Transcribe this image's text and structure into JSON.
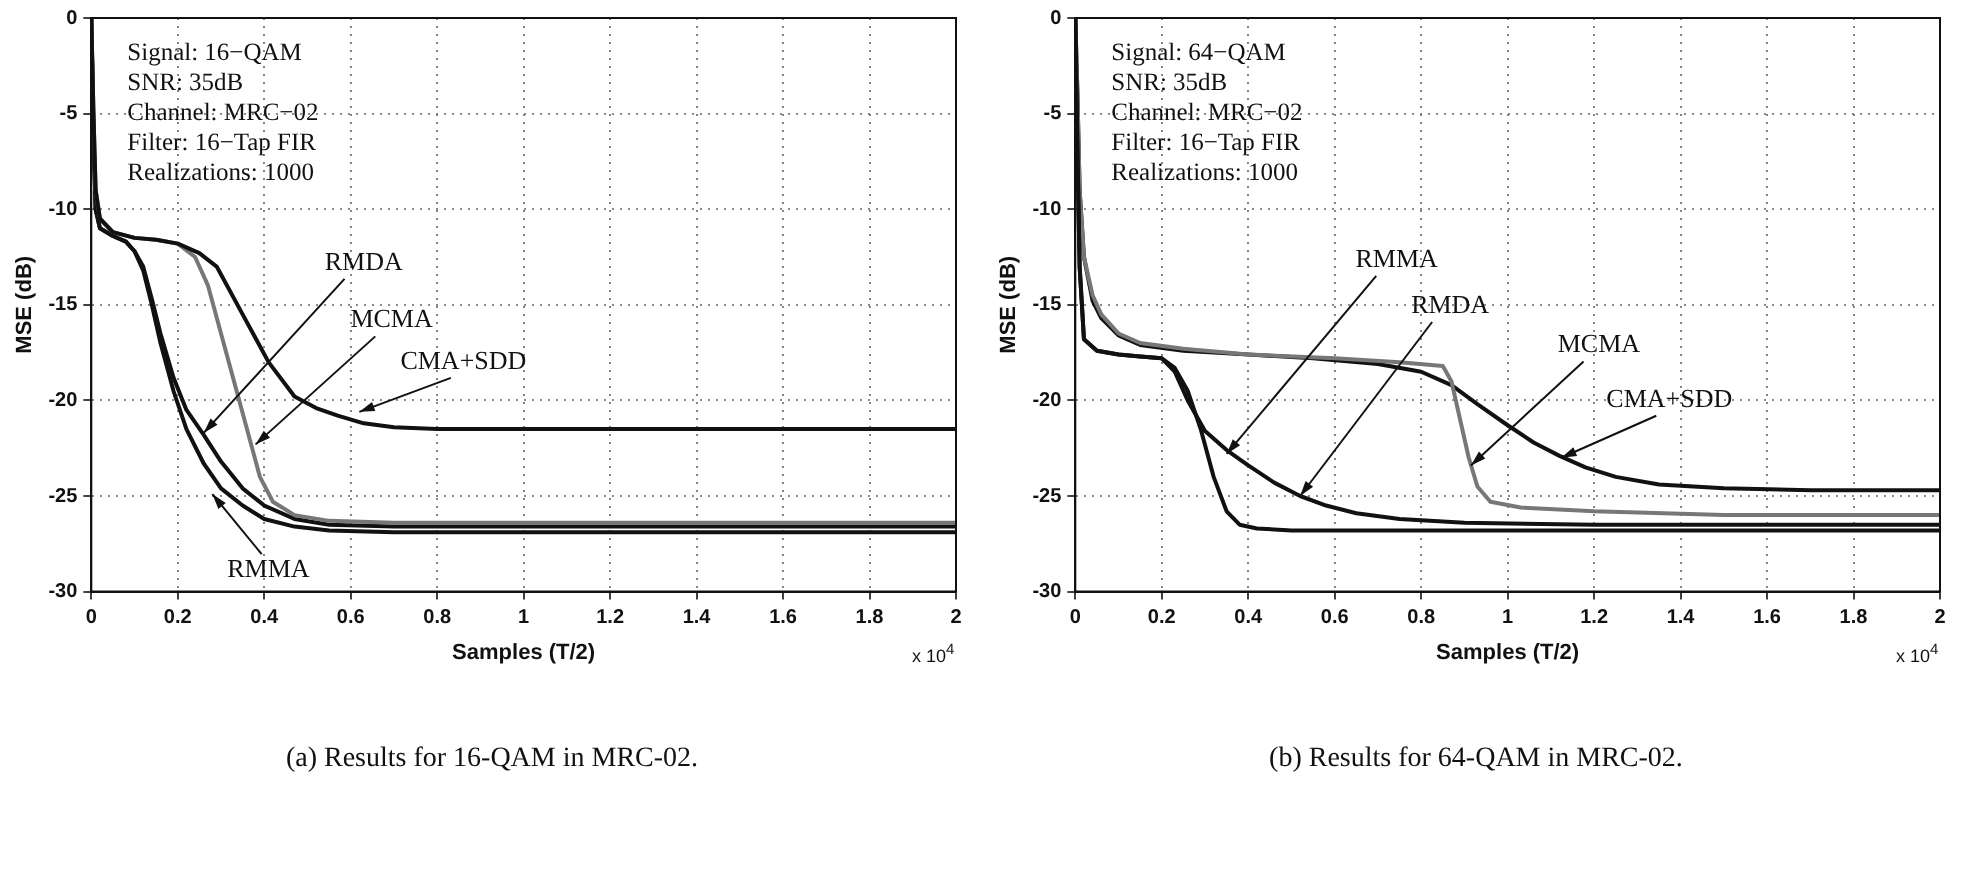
{
  "chart_data": [
    {
      "type": "line",
      "xlabel": "Samples (T/2)",
      "ylabel": "MSE (dB)",
      "xlim": [
        0,
        2
      ],
      "xticks": [
        0,
        0.2,
        0.4,
        0.6,
        0.8,
        1,
        1.2,
        1.4,
        1.6,
        1.8,
        2
      ],
      "ylim": [
        -30,
        0
      ],
      "yticks": [
        -30,
        -25,
        -20,
        -15,
        -10,
        -5,
        0
      ],
      "grid": true,
      "series": [
        {
          "color": "#111111",
          "x": [
            0,
            0.005,
            0.01,
            0.02,
            0.05,
            0.1,
            0.15,
            0.2,
            0.25,
            0.29,
            0.35,
            0.41,
            0.47,
            0.52,
            0.57,
            0.63,
            0.7,
            0.8,
            1,
            1.2,
            1.4,
            1.6,
            1.8,
            2
          ],
          "values": [
            0,
            -5,
            -9,
            -10.5,
            -11.2,
            -11.5,
            -11.6,
            -11.8,
            -12.3,
            -13,
            -15.5,
            -18,
            -19.8,
            -20.4,
            -20.8,
            -21.2,
            -21.4,
            -21.5,
            -21.5,
            -21.5,
            -21.5,
            -21.5,
            -21.5,
            -21.5
          ]
        },
        {
          "color": "#777777",
          "x": [
            0,
            0.005,
            0.01,
            0.02,
            0.05,
            0.1,
            0.15,
            0.2,
            0.24,
            0.27,
            0.3,
            0.33,
            0.36,
            0.39,
            0.42,
            0.47,
            0.55,
            0.7,
            1,
            1.4,
            2
          ],
          "values": [
            0,
            -5,
            -9,
            -10.5,
            -11.2,
            -11.5,
            -11.6,
            -11.8,
            -12.5,
            -14,
            -16.5,
            -19,
            -21.5,
            -24,
            -25.3,
            -26,
            -26.3,
            -26.4,
            -26.4,
            -26.4,
            -26.4
          ]
        },
        {
          "color": "#111111",
          "x": [
            0,
            0.005,
            0.01,
            0.02,
            0.05,
            0.08,
            0.1,
            0.12,
            0.14,
            0.16,
            0.19,
            0.22,
            0.26,
            0.3,
            0.35,
            0.4,
            0.47,
            0.55,
            0.7,
            1,
            1.5,
            2
          ],
          "values": [
            0,
            -6,
            -10,
            -11,
            -11.4,
            -11.7,
            -12.2,
            -13,
            -14.7,
            -16.5,
            -18.8,
            -20.5,
            -21.8,
            -23.2,
            -24.6,
            -25.5,
            -26.2,
            -26.5,
            -26.6,
            -26.6,
            -26.6,
            -26.6
          ]
        },
        {
          "color": "#111111",
          "x": [
            0,
            0.005,
            0.01,
            0.02,
            0.05,
            0.08,
            0.1,
            0.12,
            0.14,
            0.16,
            0.19,
            0.22,
            0.26,
            0.3,
            0.35,
            0.4,
            0.47,
            0.55,
            0.7,
            1,
            1.5,
            2
          ],
          "values": [
            0,
            -6,
            -10,
            -11,
            -11.4,
            -11.7,
            -12.2,
            -13.2,
            -15,
            -17,
            -19.5,
            -21.5,
            -23.3,
            -24.6,
            -25.5,
            -26.2,
            -26.6,
            -26.8,
            -26.9,
            -26.9,
            -26.9,
            -26.9
          ]
        }
      ],
      "annotations": [
        {
          "text": "RMDA",
          "x": 0.26,
          "y": -21.7
        },
        {
          "text": "MCMA",
          "x": 0.38,
          "y": -22.3
        },
        {
          "text": "CMA+SDD",
          "x": 0.62,
          "y": -20.6
        },
        {
          "text": "RMMA",
          "x": 0.28,
          "y": -24.9
        },
        "Signal: 16−QAM",
        "SNR: 35dB",
        "Channel: MRC−02",
        "Filter: 16−Tap FIR",
        "Realizations: 1000",
        "x 10$^{4}$",
        "(a) Results for 16-QAM in MRC-02."
      ]
    },
    {
      "type": "line",
      "xlabel": "Samples (T/2)",
      "ylabel": "MSE (dB)",
      "xlim": [
        0,
        2
      ],
      "xticks": [
        0,
        0.2,
        0.4,
        0.6,
        0.8,
        1,
        1.2,
        1.4,
        1.6,
        1.8,
        2
      ],
      "ylim": [
        -30,
        0
      ],
      "yticks": [
        -30,
        -25,
        -20,
        -15,
        -10,
        -5,
        0
      ],
      "grid": true,
      "series": [
        {
          "color": "#111111",
          "x": [
            0,
            0.005,
            0.01,
            0.02,
            0.05,
            0.1,
            0.15,
            0.2,
            0.23,
            0.26,
            0.29,
            0.32,
            0.35,
            0.38,
            0.42,
            0.5,
            0.7,
            1,
            1.5,
            2
          ],
          "values": [
            0,
            -7,
            -13,
            -16.8,
            -17.4,
            -17.6,
            -17.7,
            -17.8,
            -18.3,
            -19.5,
            -21.5,
            -24,
            -25.8,
            -26.5,
            -26.7,
            -26.8,
            -26.8,
            -26.8,
            -26.8,
            -26.8
          ]
        },
        {
          "color": "#111111",
          "x": [
            0,
            0.005,
            0.01,
            0.02,
            0.05,
            0.1,
            0.15,
            0.2,
            0.23,
            0.26,
            0.3,
            0.35,
            0.4,
            0.46,
            0.52,
            0.58,
            0.65,
            0.75,
            0.9,
            1.2,
            1.6,
            2
          ],
          "values": [
            0,
            -7,
            -13,
            -16.8,
            -17.4,
            -17.6,
            -17.7,
            -17.8,
            -18.5,
            -20,
            -21.6,
            -22.6,
            -23.4,
            -24.3,
            -25,
            -25.5,
            -25.9,
            -26.2,
            -26.4,
            -26.5,
            -26.5,
            -26.5
          ]
        },
        {
          "color": "#777777",
          "x": [
            0,
            0.005,
            0.01,
            0.02,
            0.04,
            0.06,
            0.1,
            0.15,
            0.25,
            0.4,
            0.6,
            0.75,
            0.85,
            0.87,
            0.89,
            0.91,
            0.93,
            0.96,
            1.03,
            1.2,
            1.5,
            2
          ],
          "values": [
            0,
            -4,
            -9,
            -12.5,
            -14.5,
            -15.5,
            -16.5,
            -17,
            -17.3,
            -17.6,
            -17.8,
            -18,
            -18.2,
            -19,
            -21,
            -23,
            -24.5,
            -25.3,
            -25.6,
            -25.8,
            -26,
            -26
          ]
        },
        {
          "color": "#111111",
          "x": [
            0,
            0.005,
            0.01,
            0.02,
            0.04,
            0.06,
            0.1,
            0.15,
            0.25,
            0.4,
            0.55,
            0.7,
            0.8,
            0.87,
            0.93,
            1,
            1.06,
            1.12,
            1.18,
            1.25,
            1.35,
            1.5,
            1.7,
            2
          ],
          "values": [
            0,
            -4,
            -9,
            -12.5,
            -14.8,
            -15.7,
            -16.6,
            -17.1,
            -17.4,
            -17.6,
            -17.8,
            -18.1,
            -18.5,
            -19.2,
            -20.2,
            -21.3,
            -22.2,
            -22.9,
            -23.5,
            -24,
            -24.4,
            -24.6,
            -24.7,
            -24.7
          ]
        }
      ],
      "annotations": [
        {
          "text": "RMMA",
          "x": 0.35,
          "y": -22.8
        },
        {
          "text": "RMDA",
          "x": 0.52,
          "y": -25
        },
        {
          "text": "MCMA",
          "x": 0.915,
          "y": -23.4
        },
        {
          "text": "CMA+SDD",
          "x": 1.124,
          "y": -23.0
        },
        "Signal: 64−QAM",
        "SNR: 35dB",
        "Channel: MRC−02",
        "Filter: 16−Tap FIR",
        "Realizations: 1000",
        "x 10$^{4}$",
        "(b) Results for 64-QAM in MRC-02."
      ]
    }
  ]
}
